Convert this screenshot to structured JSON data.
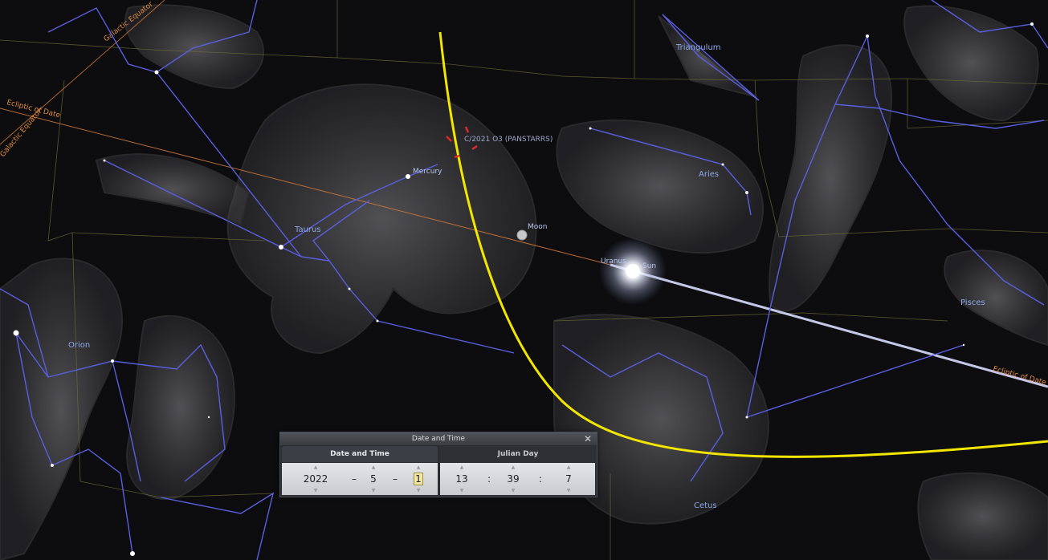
{
  "constellations": {
    "triangulum": "Triangulum",
    "aries": "Aries",
    "taurus": "Taurus",
    "orion": "Orion",
    "pisces": "Pisces",
    "cetus": "Cetus"
  },
  "reference_lines": {
    "galactic_equator_top": "Galactic Equator",
    "galactic_equator_left": "Galactic Equator",
    "ecliptic_left": "Ecliptic of Date",
    "ecliptic_right": "Ecliptic of Date"
  },
  "objects": {
    "mercury": "Mercury",
    "moon": "Moon",
    "uranus": "Uranus",
    "sun": "Sun",
    "comet": "C/2021 O3 (PANSTARRS)"
  },
  "date_time_dialog": {
    "title": "Date and Time",
    "close_glyph": "✕",
    "tab_date": "Date and Time",
    "tab_julian": "Julian Day",
    "year": "2022",
    "month": "5",
    "day": "1",
    "hour": "13",
    "minute": "39",
    "second": "7",
    "date_separator": "–",
    "time_separator": ":",
    "arrow_up": "▲",
    "arrow_down": "▼"
  },
  "colors": {
    "constellation_line": "#5a5fe0",
    "ecliptic": "#e08a3c",
    "comet_path": "#f2e600",
    "boundary": "#6b6b36"
  }
}
